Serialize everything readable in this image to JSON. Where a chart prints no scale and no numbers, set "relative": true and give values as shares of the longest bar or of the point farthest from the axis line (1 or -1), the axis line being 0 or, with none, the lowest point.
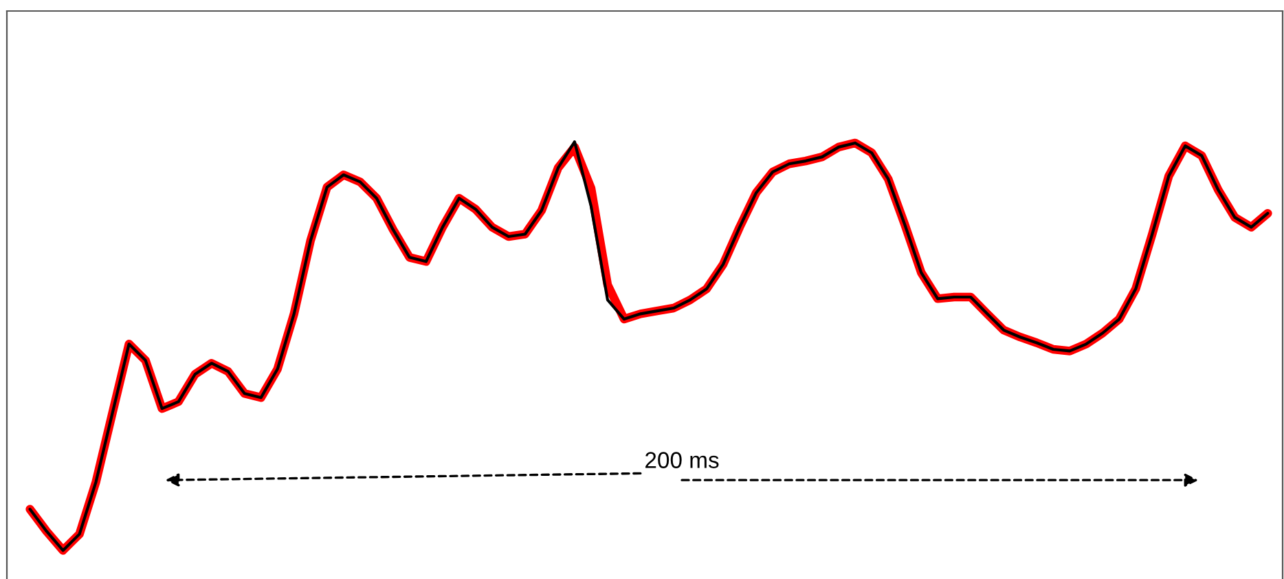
{
  "chart_data": {
    "type": "line",
    "relative": true,
    "categories": [
      null,
      null,
      null,
      null,
      null,
      null,
      null,
      null,
      null,
      null,
      null,
      null,
      null,
      null,
      null,
      null,
      null,
      null,
      null,
      null,
      null,
      null,
      null,
      null,
      null,
      null,
      null,
      null,
      null,
      null,
      null,
      null,
      null,
      null,
      null,
      null,
      null,
      null,
      null,
      null,
      null,
      null,
      null,
      null,
      null,
      null,
      null,
      null,
      null,
      null,
      null,
      null,
      null,
      null,
      null,
      null,
      null,
      null,
      null,
      null,
      null,
      null,
      null,
      null,
      null,
      null,
      null,
      null,
      null,
      null,
      null,
      null,
      null,
      null,
      null,
      null
    ],
    "series": [
      {
        "color": "#ff0000",
        "values": [
          0.101,
          0.047,
          0,
          0.04,
          0.168,
          0.337,
          0.505,
          0.465,
          0.347,
          0.364,
          0.431,
          0.458,
          0.438,
          0.384,
          0.374,
          0.444,
          0.579,
          0.758,
          0.889,
          0.919,
          0.902,
          0.862,
          0.785,
          0.717,
          0.707,
          0.791,
          0.862,
          0.835,
          0.791,
          0.768,
          0.774,
          0.832,
          0.936,
          0.987,
          0.886,
          0.65,
          0.566,
          0.579,
          0.586,
          0.593,
          0.613,
          0.64,
          0.7,
          0.791,
          0.875,
          0.926,
          0.946,
          0.953,
          0.963,
          0.987,
          0.997,
          0.973,
          0.909,
          0.798,
          0.68,
          0.616,
          0.62,
          0.62,
          0.579,
          0.539,
          0.522,
          0.508,
          0.492,
          0.488,
          0.505,
          0.532,
          0.566,
          0.64,
          0.774,
          0.916,
          0.99,
          0.966,
          0.882,
          0.815,
          0.791,
          0.825
        ]
      },
      {
        "color": "#000000",
        "values": [
          0.101,
          0.047,
          0,
          0.04,
          0.168,
          0.337,
          0.505,
          0.465,
          0.347,
          0.364,
          0.431,
          0.458,
          0.438,
          0.384,
          0.374,
          0.444,
          0.579,
          0.758,
          0.889,
          0.919,
          0.902,
          0.862,
          0.785,
          0.717,
          0.707,
          0.791,
          0.862,
          0.835,
          0.791,
          0.768,
          0.774,
          0.832,
          0.936,
          1,
          0.842,
          0.613,
          0.566,
          0.579,
          0.586,
          0.593,
          0.613,
          0.64,
          0.7,
          0.791,
          0.875,
          0.926,
          0.946,
          0.953,
          0.963,
          0.987,
          0.997,
          0.973,
          0.909,
          0.798,
          0.68,
          0.616,
          0.62,
          0.62,
          0.579,
          0.539,
          0.522,
          0.508,
          0.492,
          0.488,
          0.505,
          0.532,
          0.566,
          0.64,
          0.774,
          0.916,
          0.99,
          0.966,
          0.882,
          0.815,
          0.791,
          0.825
        ]
      }
    ],
    "annotations": [
      "200 ms"
    ]
  }
}
